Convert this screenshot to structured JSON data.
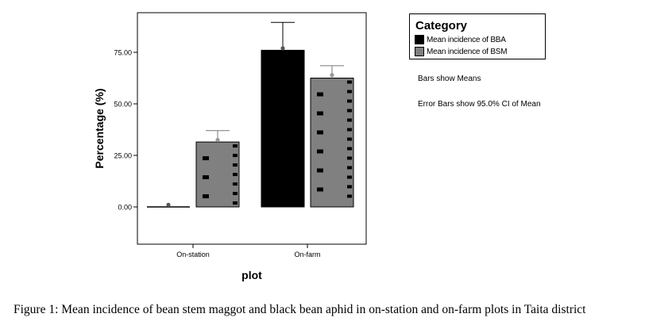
{
  "chart_data": {
    "type": "bar",
    "xlabel": "plot",
    "ylabel": "Percentage (%)",
    "categories": [
      "On-station",
      "On-farm"
    ],
    "ylim": [
      -20,
      95
    ],
    "yticks": [
      0,
      25,
      50,
      75
    ],
    "ytick_labels": [
      "0.00",
      "25.00",
      "50.00",
      "75.00"
    ],
    "series": [
      {
        "name": "Mean incidence of BBA",
        "color": "#000000",
        "values": [
          0,
          76
        ],
        "mean_markers": [
          1,
          77
        ],
        "ci_upper": [
          0,
          89.5
        ]
      },
      {
        "name": "Mean incidence of BSM",
        "color": "#808080",
        "values": [
          31.5,
          62.5
        ],
        "mean_markers": [
          32.5,
          64
        ],
        "ci_upper": [
          37,
          68.5
        ]
      }
    ],
    "legend": {
      "title": "Category",
      "placement": "outside-right"
    },
    "grid": false
  },
  "notes": [
    "Bars show Means",
    "Error Bars show 95.0% CI of Mean"
  ],
  "caption": "Figure 1: Mean incidence of bean stem maggot and black bean aphid in on-station and on-farm plots in Taita district"
}
